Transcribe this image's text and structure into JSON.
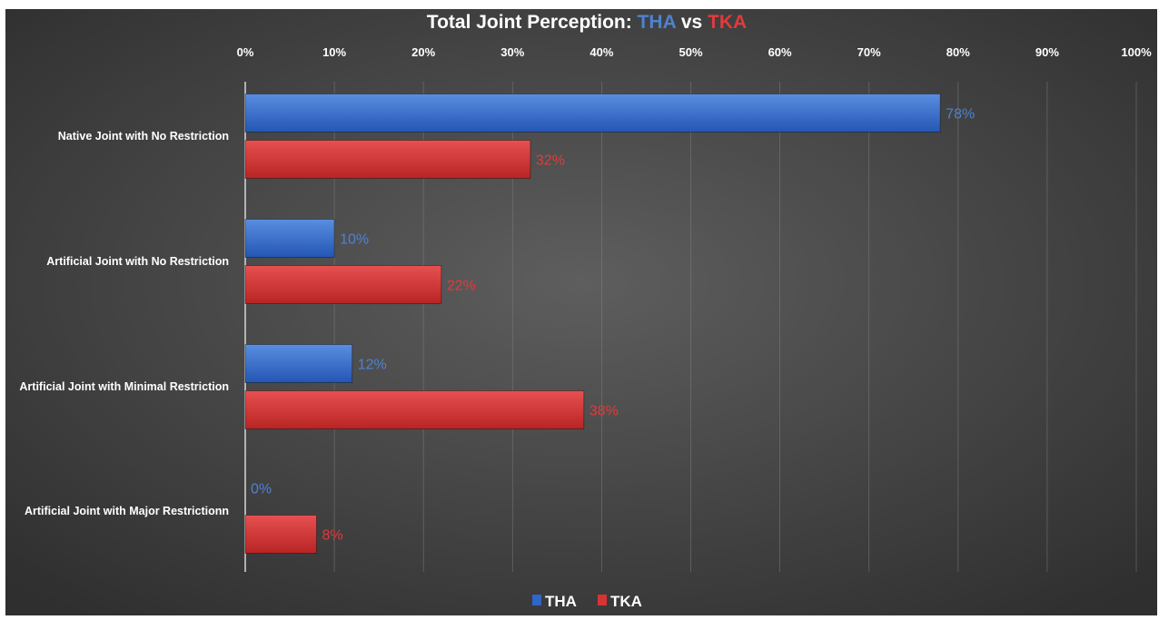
{
  "title": {
    "prefix": "Total Joint Perception: ",
    "series_a": "THA",
    "middle": " vs ",
    "series_b": "TKA"
  },
  "colors": {
    "tha": "#4f82d1",
    "tha_bar": "#2f66c8",
    "tka": "#e33a3a",
    "tka_bar": "#d63434",
    "title_text": "#ffffff",
    "axis_text": "#ffffff",
    "background_center": "#5e5e5e",
    "background_edge": "#2f2f2f"
  },
  "chart_data": {
    "type": "bar",
    "orientation": "horizontal",
    "categories": [
      "Native Joint with No Restriction",
      "Artificial Joint with No Restriction",
      "Artificial Joint with Minimal Restriction",
      "Artificial Joint with Major Restrictionn"
    ],
    "series": [
      {
        "name": "THA",
        "values": [
          78,
          10,
          12,
          0
        ],
        "labels": [
          "78%",
          "10%",
          "12%",
          "0%"
        ]
      },
      {
        "name": "TKA",
        "values": [
          32,
          22,
          38,
          8
        ],
        "labels": [
          "32%",
          "22%",
          "38%",
          "8%"
        ]
      }
    ],
    "xlim": [
      0,
      100
    ],
    "xticks": [
      "0%",
      "10%",
      "20%",
      "30%",
      "40%",
      "50%",
      "60%",
      "70%",
      "80%",
      "90%",
      "100%"
    ],
    "xaxis_position": "top",
    "grid": true,
    "legend": "bottom-center"
  }
}
